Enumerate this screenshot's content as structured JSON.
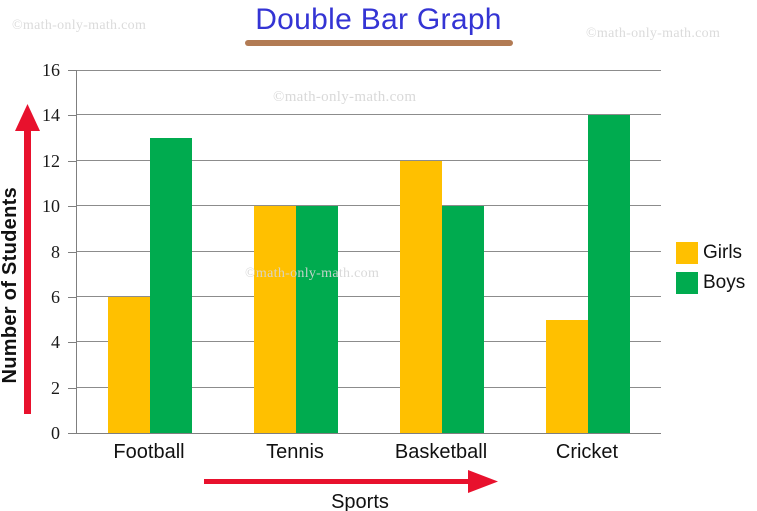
{
  "page": {
    "watermark_text": "©math-only-math.com"
  },
  "title": {
    "text": "Double Bar Graph"
  },
  "chart_data": {
    "type": "bar",
    "title": "Double Bar Graph",
    "categories": [
      "Football",
      "Tennis",
      "Basketball",
      "Cricket"
    ],
    "series": [
      {
        "name": "Girls",
        "color": "#FFC000",
        "values": [
          6,
          10,
          12,
          5
        ]
      },
      {
        "name": "Boys",
        "color": "#00AB4F",
        "values": [
          13,
          10,
          10,
          14
        ]
      }
    ],
    "xlabel": "Sports",
    "ylabel": "Number of Students",
    "ylim": [
      0,
      16
    ],
    "ytick_step": 2,
    "grid": true,
    "legend_position": "right"
  },
  "colors": {
    "title": "#3434D4",
    "title_underline": "#B27B54",
    "arrow": "#E8112D",
    "gridline": "#8C8C8C",
    "axis": "#7F7F7F",
    "girls": "#FFC000",
    "boys": "#00AB4F",
    "watermark": "#DBDBDB"
  }
}
